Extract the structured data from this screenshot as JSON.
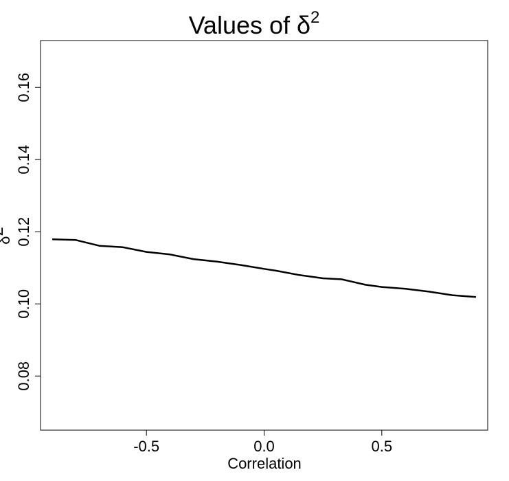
{
  "chart_data": {
    "type": "line",
    "title": "Values of δ",
    "title_superscript": "2",
    "xlabel": "Correlation",
    "ylabel": "δ",
    "ylabel_superscript": "2",
    "xlim": [
      -0.95,
      0.95
    ],
    "ylim": [
      0.065,
      0.173
    ],
    "xticks": [
      -0.5,
      0.0,
      0.5
    ],
    "xtick_labels": [
      "-0.5",
      "0.0",
      "0.5"
    ],
    "yticks": [
      0.08,
      0.1,
      0.12,
      0.14,
      0.16
    ],
    "ytick_labels": [
      "0.08",
      "0.10",
      "0.12",
      "0.14",
      "0.16"
    ],
    "grid": false,
    "series": [
      {
        "x": [
          -0.9,
          -0.8,
          -0.7,
          -0.6,
          -0.5,
          -0.4,
          -0.3,
          -0.2,
          -0.1,
          0.0,
          0.05,
          0.15,
          0.25,
          0.33,
          0.43,
          0.5,
          0.6,
          0.7,
          0.8,
          0.9
        ],
        "values": [
          0.1179,
          0.1177,
          0.1161,
          0.1157,
          0.1144,
          0.1137,
          0.1124,
          0.1117,
          0.1108,
          0.1097,
          0.1092,
          0.108,
          0.1071,
          0.1068,
          0.1053,
          0.1047,
          0.1042,
          0.1034,
          0.1024,
          0.1019
        ],
        "color": "#000000"
      }
    ]
  }
}
